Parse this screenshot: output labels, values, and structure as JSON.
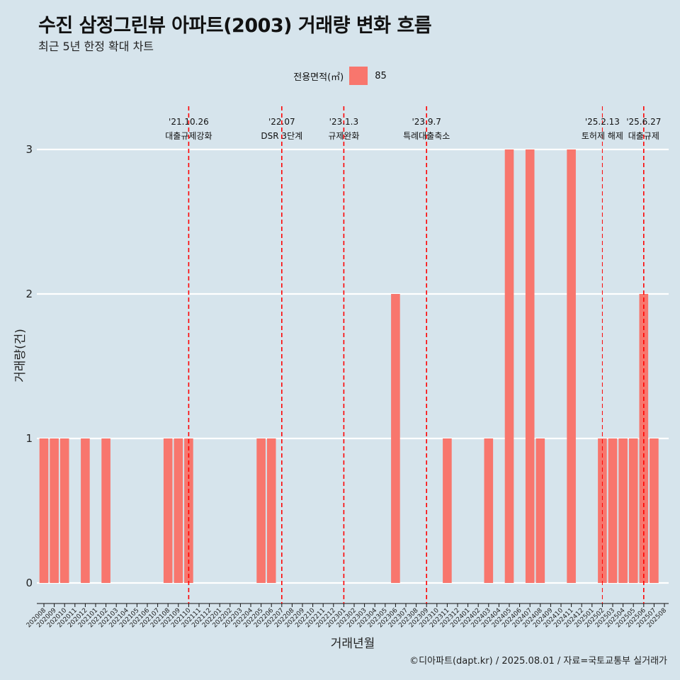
{
  "title": "수진 삼정그린뷰 아파트(2003) 거래량 변화 흐름",
  "subtitle": "최근 5년 한정 확대 차트",
  "caption": "©디아파트(dapt.kr) / 2025.08.01 / 자료=국토교통부 실거래가",
  "colors": {
    "background": "#d6e4ec",
    "bar": "#f8766d",
    "gridline": "#ffffff",
    "event_line": "#ff0000"
  },
  "chart_data": {
    "type": "bar",
    "xlabel": "거래년월",
    "ylabel": "거래량(건)",
    "ylim": [
      0,
      3
    ],
    "yticks": [
      0,
      1,
      2,
      3
    ],
    "legend": {
      "title": "전용면적(㎡)",
      "position": "top",
      "entries": [
        "85"
      ]
    },
    "categories": [
      "202008",
      "202009",
      "202010",
      "202011",
      "202012",
      "202101",
      "202102",
      "202103",
      "202104",
      "202105",
      "202106",
      "202107",
      "202108",
      "202109",
      "202110",
      "202111",
      "202112",
      "202201",
      "202202",
      "202203",
      "202204",
      "202205",
      "202206",
      "202207",
      "202208",
      "202209",
      "202210",
      "202211",
      "202212",
      "202301",
      "202302",
      "202303",
      "202304",
      "202305",
      "202306",
      "202307",
      "202308",
      "202309",
      "202310",
      "202311",
      "202312",
      "202401",
      "202402",
      "202403",
      "202404",
      "202405",
      "202406",
      "202407",
      "202408",
      "202409",
      "202410",
      "202411",
      "202412",
      "202501",
      "202502",
      "202503",
      "202504",
      "202505",
      "202506",
      "202507",
      "202508"
    ],
    "series": [
      {
        "name": "85",
        "values": [
          1,
          1,
          1,
          0,
          1,
          0,
          1,
          0,
          0,
          0,
          0,
          0,
          1,
          1,
          1,
          0,
          0,
          0,
          0,
          0,
          0,
          1,
          1,
          0,
          0,
          0,
          0,
          0,
          0,
          0,
          0,
          0,
          0,
          0,
          2,
          0,
          0,
          0,
          0,
          1,
          0,
          0,
          0,
          1,
          0,
          3,
          0,
          3,
          1,
          0,
          0,
          3,
          0,
          0,
          1,
          1,
          1,
          1,
          2,
          1,
          0
        ]
      }
    ],
    "annotations": [
      {
        "x": "202110",
        "date": "'21.10.26",
        "label": "대출규제강화"
      },
      {
        "x": "202207",
        "date": "'22.07",
        "label": "DSR 3단계"
      },
      {
        "x": "202301",
        "date": "'23.1.3",
        "label": "규제완화"
      },
      {
        "x": "202309",
        "date": "'23.9.7",
        "label": "특례대출축소"
      },
      {
        "x": "202502",
        "date": "'25.2.13",
        "label": "토허제 해제"
      },
      {
        "x": "202506",
        "date": "'25.6.27",
        "label": "대출규제"
      }
    ]
  }
}
